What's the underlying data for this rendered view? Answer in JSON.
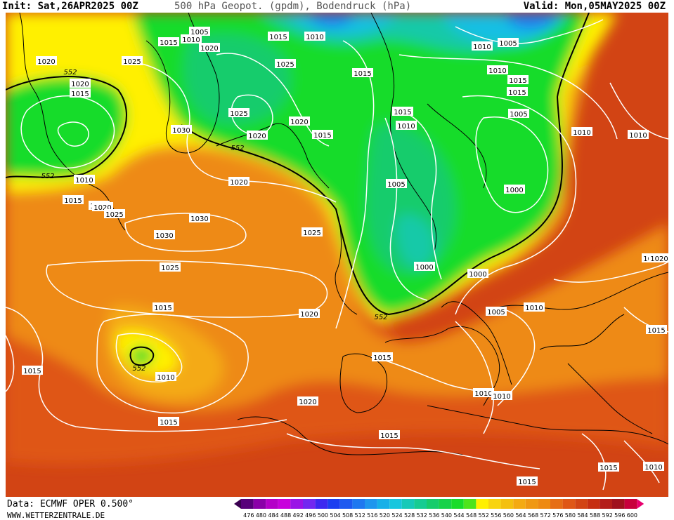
{
  "header": {
    "init": "Init: Sat,26APR2025 00Z",
    "title": "500 hPa Geopot. (gpdm), Bodendruck (hPa)",
    "valid": "Valid: Mon,05MAY2025 00Z"
  },
  "footer": {
    "data_source": "Data: ECMWF OPER 0.500°",
    "website": "WWW.WETTERZENTRALE.DE"
  },
  "colors": {
    "very_high": "#c62f12",
    "high": "#df5716",
    "mid_high": "#ee8a12",
    "mid": "#f4aa12",
    "yellow": "#fff000",
    "green": "#18dc2a",
    "green_mid": "#17cc6c",
    "teal": "#16c9a8",
    "cyan": "#17bfe3",
    "blue": "#1e78f0",
    "isobar": "#ffffff",
    "land": "#000000"
  },
  "legend": {
    "values": [
      "476",
      "480",
      "484",
      "488",
      "492",
      "496",
      "500",
      "504",
      "508",
      "512",
      "516",
      "520",
      "524",
      "528",
      "532",
      "536",
      "540",
      "544",
      "548",
      "552",
      "556",
      "560",
      "564",
      "568",
      "572",
      "576",
      "580",
      "584",
      "588",
      "592",
      "596",
      "600"
    ],
    "colors": [
      "#3a0050",
      "#58007a",
      "#8a00a8",
      "#b400c8",
      "#c800dc",
      "#9a14e6",
      "#7228f0",
      "#3c28f0",
      "#1c3ef0",
      "#1e5af0",
      "#1e78f0",
      "#1e96ee",
      "#17b0e8",
      "#17c6de",
      "#16c9b8",
      "#16cc92",
      "#17cc6c",
      "#17d24a",
      "#18dc2a",
      "#4ee41c",
      "#fff000",
      "#f8d40e",
      "#f4c010",
      "#f4aa12",
      "#f09812",
      "#ee8a12",
      "#e66e16",
      "#df5716",
      "#d24414",
      "#c62f12",
      "#b41e1a",
      "#a0121e",
      "#c8003c",
      "#e8006e"
    ]
  },
  "contour_labels": [
    {
      "text": "552"
    },
    {
      "text": "552"
    },
    {
      "text": "552"
    },
    {
      "text": "552"
    },
    {
      "text": "552"
    },
    {
      "text": "1005"
    },
    {
      "text": "1010"
    },
    {
      "text": "1015"
    },
    {
      "text": "1020"
    },
    {
      "text": "1010"
    },
    {
      "text": "1015"
    },
    {
      "text": "1010"
    },
    {
      "text": "1005"
    },
    {
      "text": "1010"
    },
    {
      "text": "1015"
    },
    {
      "text": "1020"
    },
    {
      "text": "1025"
    },
    {
      "text": "1020"
    },
    {
      "text": "1015"
    },
    {
      "text": "1025"
    },
    {
      "text": "1015"
    },
    {
      "text": "1015"
    },
    {
      "text": "1015"
    },
    {
      "text": "1010"
    },
    {
      "text": "1030"
    },
    {
      "text": "1025"
    },
    {
      "text": "1020"
    },
    {
      "text": "1020"
    },
    {
      "text": "1015"
    },
    {
      "text": "1010"
    },
    {
      "text": "1015"
    },
    {
      "text": "1005"
    },
    {
      "text": "1010"
    },
    {
      "text": "1010"
    },
    {
      "text": "1015"
    },
    {
      "text": "1020"
    },
    {
      "text": "1010"
    },
    {
      "text": "1020"
    },
    {
      "text": "1025"
    },
    {
      "text": "1030"
    },
    {
      "text": "1030"
    },
    {
      "text": "1025"
    },
    {
      "text": "1005"
    },
    {
      "text": "1000"
    },
    {
      "text": "1000"
    },
    {
      "text": "1025"
    },
    {
      "text": "1000"
    },
    {
      "text": "1015"
    },
    {
      "text": "1020"
    },
    {
      "text": "1005"
    },
    {
      "text": "1010"
    },
    {
      "text": "1015"
    },
    {
      "text": "1010"
    },
    {
      "text": "1020"
    },
    {
      "text": "1015"
    },
    {
      "text": "1010"
    },
    {
      "text": "1010"
    },
    {
      "text": "1020"
    },
    {
      "text": "1015"
    },
    {
      "text": "1015"
    },
    {
      "text": "1015"
    },
    {
      "text": "1015"
    },
    {
      "text": "1015"
    },
    {
      "text": "1010"
    },
    {
      "text": "1020"
    },
    {
      "text": "1010"
    }
  ]
}
